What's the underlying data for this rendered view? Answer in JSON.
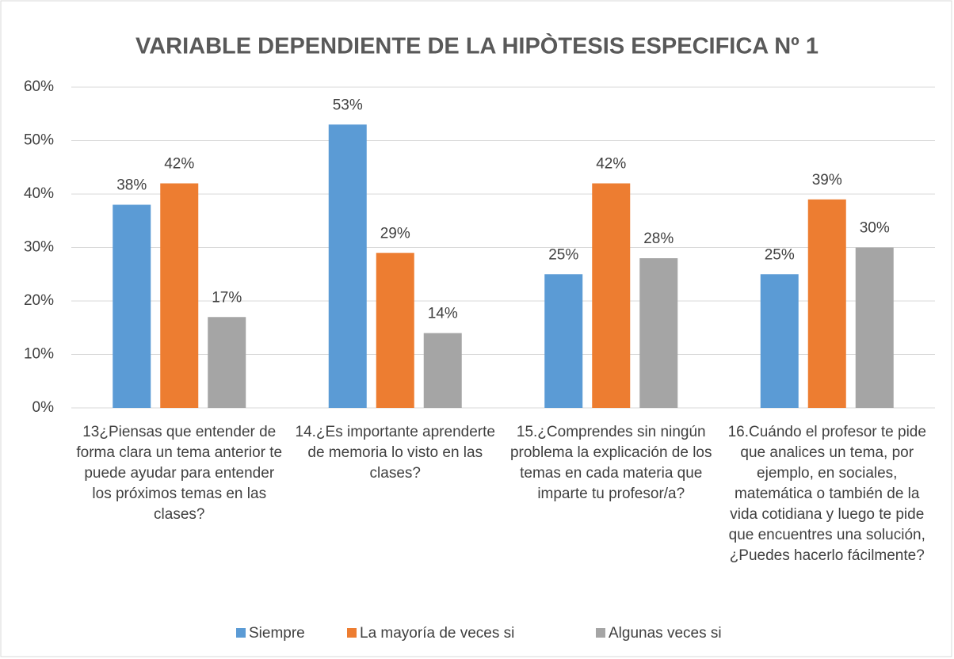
{
  "chart_data": {
    "type": "bar",
    "title": "VARIABLE DEPENDIENTE DE LA HIPÒTESIS ESPECIFICA Nº 1",
    "categories": [
      "13¿Piensas que entender de forma clara un tema anterior te puede ayudar para entender los próximos temas en las clases?",
      "14.¿Es importante aprenderte de memoria lo visto en las clases?",
      "15.¿Comprendes sin ningún problema la explicación de los temas en cada materia que imparte tu profesor/a?",
      "16.Cuándo el profesor te pide que analices un tema, por ejemplo, en sociales, matemática o también de la vida cotidiana y luego te pide que encuentres una solución, ¿Puedes hacerlo fácilmente?"
    ],
    "series": [
      {
        "name": "Siempre",
        "color": "#5b9bd5",
        "values": [
          38,
          53,
          25,
          25
        ],
        "value_labels": [
          "38%",
          "53%",
          "25%",
          "25%"
        ]
      },
      {
        "name": "La mayoría de veces si",
        "color": "#ed7d31",
        "values": [
          42,
          29,
          42,
          39
        ],
        "value_labels": [
          "42%",
          "29%",
          "42%",
          "39%"
        ]
      },
      {
        "name": "Algunas veces si",
        "color": "#a5a5a5",
        "values": [
          17,
          14,
          28,
          30
        ],
        "value_labels": [
          "17%",
          "14%",
          "28%",
          "30%"
        ]
      }
    ],
    "ylim": [
      0,
      60
    ],
    "yticks": [
      {
        "value": 0,
        "label": "0%"
      },
      {
        "value": 10,
        "label": "10%"
      },
      {
        "value": 20,
        "label": "20%"
      },
      {
        "value": 30,
        "label": "30%"
      },
      {
        "value": 40,
        "label": "40%"
      },
      {
        "value": 50,
        "label": "50%"
      },
      {
        "value": 60,
        "label": "60%"
      }
    ],
    "grid": true,
    "legend": "bottom"
  }
}
